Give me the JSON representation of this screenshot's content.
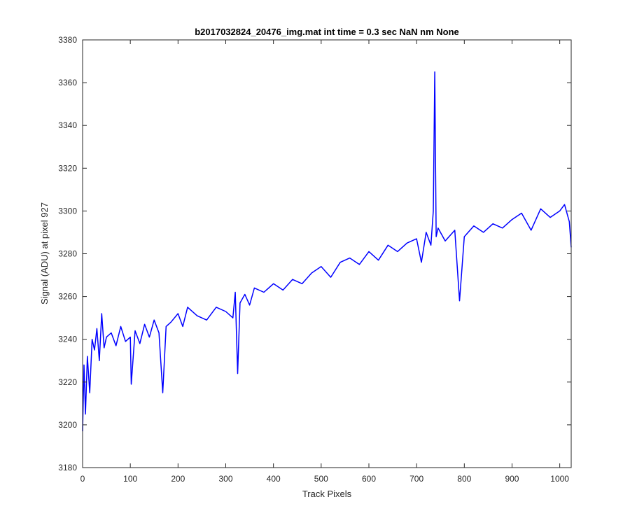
{
  "chart_data": {
    "type": "line",
    "title": "b2017032824_20476_img.mat int time = 0.3 sec  NaN nm None",
    "xlabel": "Track Pixels",
    "ylabel": "Signal (ADU) at pixel 927",
    "xlim": [
      0,
      1024
    ],
    "ylim": [
      3180,
      3380
    ],
    "xticks": [
      0,
      100,
      200,
      300,
      400,
      500,
      600,
      700,
      800,
      900,
      1000
    ],
    "yticks": [
      3180,
      3200,
      3220,
      3240,
      3260,
      3280,
      3300,
      3320,
      3340,
      3360,
      3380
    ],
    "grid": false,
    "colors": {
      "line": "#0000ff",
      "axes": "#262626",
      "background": "#ffffff"
    },
    "series": [
      {
        "x": [
          0,
          3,
          6,
          10,
          15,
          20,
          25,
          30,
          35,
          40,
          45,
          50,
          60,
          70,
          80,
          90,
          100,
          102,
          110,
          120,
          130,
          140,
          150,
          160,
          168,
          175,
          185,
          200,
          210,
          220,
          240,
          260,
          280,
          300,
          315,
          320,
          325,
          330,
          340,
          350,
          360,
          380,
          400,
          420,
          440,
          460,
          480,
          500,
          520,
          540,
          560,
          580,
          600,
          620,
          640,
          660,
          680,
          700,
          710,
          720,
          730,
          735,
          738,
          741,
          745,
          760,
          780,
          790,
          800,
          820,
          840,
          860,
          880,
          900,
          920,
          940,
          960,
          980,
          1000,
          1010,
          1020,
          1024
        ],
        "values": [
          3197,
          3228,
          3205,
          3232,
          3215,
          3240,
          3235,
          3245,
          3230,
          3252,
          3236,
          3241,
          3243,
          3237,
          3246,
          3239,
          3241,
          3219,
          3244,
          3238,
          3247,
          3241,
          3249,
          3243,
          3215,
          3246,
          3248,
          3252,
          3246,
          3255,
          3251,
          3249,
          3255,
          3253,
          3250,
          3262,
          3224,
          3257,
          3261,
          3256,
          3264,
          3262,
          3266,
          3263,
          3268,
          3266,
          3271,
          3274,
          3269,
          3276,
          3278,
          3275,
          3281,
          3277,
          3284,
          3281,
          3285,
          3287,
          3276,
          3290,
          3284,
          3300,
          3365,
          3288,
          3292,
          3286,
          3291,
          3258,
          3288,
          3293,
          3290,
          3294,
          3292,
          3296,
          3299,
          3291,
          3301,
          3297,
          3300,
          3303,
          3295,
          3283
        ]
      }
    ]
  }
}
